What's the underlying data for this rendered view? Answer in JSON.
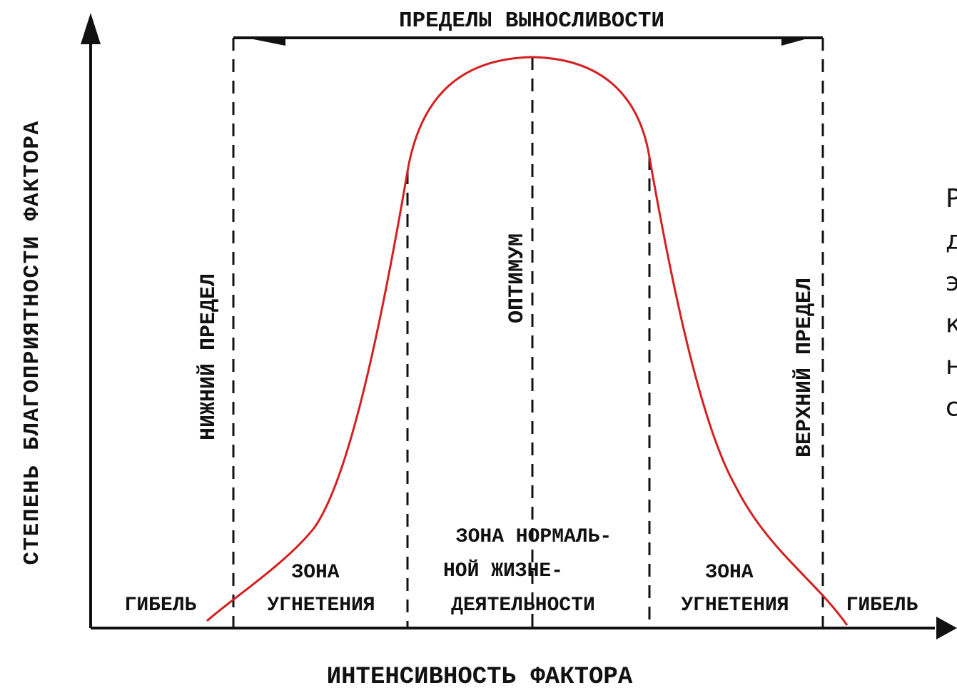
{
  "title": "ПРЕДЕЛЫ ВЫНОСЛИВОСТИ",
  "y_axis_label": "СТЕПЕНЬ БЛАГОПРИЯТНОСТИ ФАКТОРА",
  "x_axis_label": "ИНТЕНСИВНОСТЬ ФАКТОРА",
  "vertical_labels": {
    "lower_limit": "НИЖНИЙ ПРЕДЕЛ",
    "optimum": "ОПТИМУМ",
    "upper_limit": "ВЕРХНИЙ ПРЕДЕЛ"
  },
  "zones": {
    "death_left": "ГИБЕЛЬ",
    "oppression_left": [
      "ЗОНА",
      "УГНЕТЕНИЯ"
    ],
    "normal": [
      "ЗОНА НОРМАЛЬ-",
      "НОЙ ЖИЗНЕ-",
      "ДЕЯТЕЛЬНОСТИ"
    ],
    "oppression_right": [
      "ЗОНА",
      "УГНЕТЕНИЯ"
    ],
    "death_right": "ГИБЕЛЬ"
  },
  "side_text": [
    "Р",
    "д",
    "э",
    "к",
    "н",
    "с"
  ]
}
